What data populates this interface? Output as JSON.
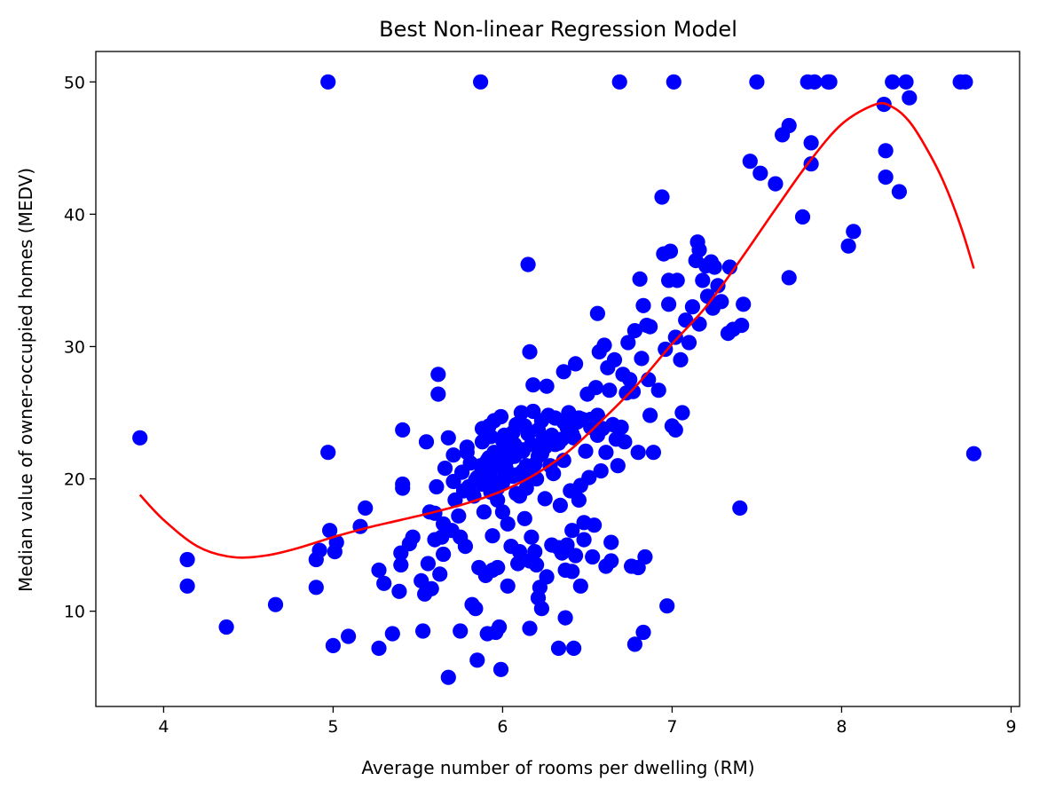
{
  "chart_data": {
    "type": "scatter",
    "title": "Best Non-linear Regression Model",
    "xlabel": "Average number of rooms per dwelling (RM)",
    "ylabel": "Median value of owner-occupied homes (MEDV)",
    "xlim": [
      3.6,
      9.05
    ],
    "ylim": [
      2.8,
      52.3
    ],
    "xticks": [
      4,
      5,
      6,
      7,
      8,
      9
    ],
    "yticks": [
      10,
      20,
      30,
      40,
      50
    ],
    "grid": false,
    "legend": "none",
    "colors": {
      "points": "#0000ff",
      "fit": "#ff0000"
    },
    "points": [
      [
        3.86,
        23.1
      ],
      [
        4.14,
        13.9
      ],
      [
        4.14,
        11.9
      ],
      [
        4.37,
        8.8
      ],
      [
        4.66,
        10.5
      ],
      [
        4.9,
        11.8
      ],
      [
        4.9,
        13.9
      ],
      [
        4.92,
        14.6
      ],
      [
        4.97,
        22.0
      ],
      [
        4.97,
        50.0
      ],
      [
        4.98,
        16.1
      ],
      [
        5.0,
        7.4
      ],
      [
        5.01,
        14.5
      ],
      [
        5.02,
        15.2
      ],
      [
        5.09,
        8.1
      ],
      [
        5.16,
        16.4
      ],
      [
        5.19,
        17.8
      ],
      [
        5.27,
        13.1
      ],
      [
        5.27,
        7.2
      ],
      [
        5.3,
        12.1
      ],
      [
        5.35,
        8.3
      ],
      [
        5.39,
        11.5
      ],
      [
        5.4,
        13.5
      ],
      [
        5.4,
        14.4
      ],
      [
        5.41,
        19.6
      ],
      [
        5.41,
        19.3
      ],
      [
        5.41,
        23.7
      ],
      [
        5.45,
        15.1
      ],
      [
        5.47,
        15.6
      ],
      [
        5.52,
        12.3
      ],
      [
        5.53,
        8.5
      ],
      [
        5.54,
        11.3
      ],
      [
        5.55,
        22.8
      ],
      [
        5.56,
        13.6
      ],
      [
        5.57,
        17.5
      ],
      [
        5.58,
        11.7
      ],
      [
        5.6,
        17.4
      ],
      [
        5.6,
        15.4
      ],
      [
        5.61,
        19.4
      ],
      [
        5.62,
        26.4
      ],
      [
        5.62,
        27.9
      ],
      [
        5.63,
        12.8
      ],
      [
        5.64,
        15.6
      ],
      [
        5.65,
        16.6
      ],
      [
        5.65,
        14.3
      ],
      [
        5.66,
        20.8
      ],
      [
        5.68,
        23.1
      ],
      [
        5.68,
        5.0
      ],
      [
        5.7,
        16.1
      ],
      [
        5.71,
        19.8
      ],
      [
        5.71,
        21.8
      ],
      [
        5.72,
        18.4
      ],
      [
        5.74,
        17.2
      ],
      [
        5.75,
        8.5
      ],
      [
        5.75,
        15.6
      ],
      [
        5.76,
        20.5
      ],
      [
        5.77,
        19.1
      ],
      [
        5.78,
        14.9
      ],
      [
        5.79,
        22.0
      ],
      [
        5.79,
        22.4
      ],
      [
        5.8,
        19.4
      ],
      [
        5.81,
        21.2
      ],
      [
        5.82,
        10.5
      ],
      [
        5.83,
        18.7
      ],
      [
        5.84,
        10.2
      ],
      [
        5.85,
        20.1
      ],
      [
        5.85,
        6.3
      ],
      [
        5.86,
        13.3
      ],
      [
        5.87,
        50.0
      ],
      [
        5.87,
        21.0
      ],
      [
        5.88,
        22.8
      ],
      [
        5.88,
        23.8
      ],
      [
        5.89,
        17.5
      ],
      [
        5.9,
        12.7
      ],
      [
        5.9,
        20.4
      ],
      [
        5.91,
        8.3
      ],
      [
        5.92,
        24.0
      ],
      [
        5.92,
        21.6
      ],
      [
        5.93,
        23.2
      ],
      [
        5.93,
        19.0
      ],
      [
        5.94,
        13.1
      ],
      [
        5.94,
        15.7
      ],
      [
        5.95,
        24.4
      ],
      [
        5.95,
        22.0
      ],
      [
        5.96,
        8.4
      ],
      [
        5.97,
        13.3
      ],
      [
        5.97,
        18.4
      ],
      [
        5.98,
        8.8
      ],
      [
        5.98,
        21.2
      ],
      [
        5.99,
        24.7
      ],
      [
        5.99,
        5.6
      ],
      [
        6.0,
        17.5
      ],
      [
        6.0,
        19.7
      ],
      [
        6.01,
        23.3
      ],
      [
        6.02,
        20.8
      ],
      [
        6.03,
        16.6
      ],
      [
        6.03,
        11.9
      ],
      [
        6.04,
        22.5
      ],
      [
        6.05,
        14.9
      ],
      [
        6.06,
        20.2
      ],
      [
        6.07,
        21.7
      ],
      [
        6.08,
        24.1
      ],
      [
        6.08,
        18.9
      ],
      [
        6.09,
        13.6
      ],
      [
        6.1,
        14.5
      ],
      [
        6.11,
        25.0
      ],
      [
        6.12,
        22.2
      ],
      [
        6.12,
        20.6
      ],
      [
        6.13,
        17.0
      ],
      [
        6.14,
        19.3
      ],
      [
        6.15,
        36.2
      ],
      [
        6.15,
        23.4
      ],
      [
        6.16,
        13.8
      ],
      [
        6.16,
        8.7
      ],
      [
        6.16,
        29.6
      ],
      [
        6.17,
        15.6
      ],
      [
        6.17,
        22.6
      ],
      [
        6.18,
        27.1
      ],
      [
        6.18,
        25.1
      ],
      [
        6.19,
        14.5
      ],
      [
        6.2,
        13.5
      ],
      [
        6.2,
        20.0
      ],
      [
        6.21,
        11.0
      ],
      [
        6.21,
        21.7
      ],
      [
        6.22,
        11.8
      ],
      [
        6.23,
        10.2
      ],
      [
        6.23,
        24.4
      ],
      [
        6.24,
        23.0
      ],
      [
        6.25,
        18.5
      ],
      [
        6.26,
        12.6
      ],
      [
        6.26,
        27.0
      ],
      [
        6.27,
        22.9
      ],
      [
        6.28,
        21.0
      ],
      [
        6.29,
        15.0
      ],
      [
        6.3,
        20.4
      ],
      [
        6.31,
        22.6
      ],
      [
        6.31,
        24.6
      ],
      [
        6.33,
        14.8
      ],
      [
        6.33,
        7.2
      ],
      [
        6.34,
        18.0
      ],
      [
        6.35,
        23.0
      ],
      [
        6.35,
        14.4
      ],
      [
        6.36,
        28.1
      ],
      [
        6.36,
        21.4
      ],
      [
        6.37,
        13.1
      ],
      [
        6.37,
        9.5
      ],
      [
        6.38,
        24.0
      ],
      [
        6.38,
        15.0
      ],
      [
        6.39,
        25.0
      ],
      [
        6.4,
        19.1
      ],
      [
        6.41,
        13.0
      ],
      [
        6.41,
        16.1
      ],
      [
        6.42,
        23.1
      ],
      [
        6.42,
        7.2
      ],
      [
        6.43,
        28.7
      ],
      [
        6.43,
        14.2
      ],
      [
        6.44,
        24.3
      ],
      [
        6.45,
        18.4
      ],
      [
        6.46,
        19.5
      ],
      [
        6.46,
        11.9
      ],
      [
        6.47,
        24.5
      ],
      [
        6.48,
        15.4
      ],
      [
        6.48,
        16.7
      ],
      [
        6.49,
        22.1
      ],
      [
        6.5,
        26.4
      ],
      [
        6.51,
        20.1
      ],
      [
        6.52,
        23.9
      ],
      [
        6.53,
        14.1
      ],
      [
        6.54,
        16.5
      ],
      [
        6.55,
        26.9
      ],
      [
        6.56,
        32.5
      ],
      [
        6.56,
        24.8
      ],
      [
        6.57,
        29.6
      ],
      [
        6.58,
        20.6
      ],
      [
        6.59,
        23.8
      ],
      [
        6.6,
        30.1
      ],
      [
        6.61,
        22.0
      ],
      [
        6.61,
        13.4
      ],
      [
        6.62,
        28.4
      ],
      [
        6.63,
        26.7
      ],
      [
        6.64,
        13.8
      ],
      [
        6.64,
        15.2
      ],
      [
        6.65,
        24.1
      ],
      [
        6.66,
        29.0
      ],
      [
        6.67,
        23.0
      ],
      [
        6.68,
        21.0
      ],
      [
        6.69,
        50.0
      ],
      [
        6.7,
        23.9
      ],
      [
        6.71,
        27.9
      ],
      [
        6.72,
        22.8
      ],
      [
        6.73,
        26.5
      ],
      [
        6.74,
        30.3
      ],
      [
        6.75,
        27.5
      ],
      [
        6.76,
        13.4
      ],
      [
        6.77,
        26.6
      ],
      [
        6.78,
        31.2
      ],
      [
        6.78,
        7.5
      ],
      [
        6.8,
        13.3
      ],
      [
        6.8,
        22.0
      ],
      [
        6.81,
        35.1
      ],
      [
        6.82,
        29.1
      ],
      [
        6.83,
        33.1
      ],
      [
        6.83,
        8.4
      ],
      [
        6.84,
        14.1
      ],
      [
        6.85,
        31.6
      ],
      [
        6.86,
        27.5
      ],
      [
        6.87,
        24.8
      ],
      [
        6.87,
        31.5
      ],
      [
        6.89,
        22.0
      ],
      [
        6.92,
        26.7
      ],
      [
        6.94,
        41.3
      ],
      [
        6.95,
        37.0
      ],
      [
        6.96,
        29.8
      ],
      [
        6.97,
        10.4
      ],
      [
        6.98,
        35.0
      ],
      [
        6.98,
        33.2
      ],
      [
        6.99,
        37.2
      ],
      [
        7.0,
        24.0
      ],
      [
        7.01,
        50.0
      ],
      [
        7.02,
        23.7
      ],
      [
        7.02,
        30.7
      ],
      [
        7.03,
        35.0
      ],
      [
        7.05,
        29.0
      ],
      [
        7.06,
        25.0
      ],
      [
        7.08,
        32.0
      ],
      [
        7.1,
        30.3
      ],
      [
        7.12,
        33.0
      ],
      [
        7.14,
        36.5
      ],
      [
        7.15,
        37.9
      ],
      [
        7.16,
        37.3
      ],
      [
        7.16,
        31.7
      ],
      [
        7.18,
        35.0
      ],
      [
        7.2,
        36.1
      ],
      [
        7.21,
        33.8
      ],
      [
        7.23,
        36.4
      ],
      [
        7.24,
        32.9
      ],
      [
        7.25,
        36.0
      ],
      [
        7.27,
        34.6
      ],
      [
        7.29,
        33.4
      ],
      [
        7.33,
        31.0
      ],
      [
        7.34,
        36.0
      ],
      [
        7.36,
        31.3
      ],
      [
        7.4,
        17.8
      ],
      [
        7.41,
        31.6
      ],
      [
        7.42,
        33.2
      ],
      [
        7.46,
        44.0
      ],
      [
        7.5,
        50.0
      ],
      [
        7.52,
        43.1
      ],
      [
        7.61,
        42.3
      ],
      [
        7.65,
        46.0
      ],
      [
        7.69,
        35.2
      ],
      [
        7.69,
        46.7
      ],
      [
        7.77,
        39.8
      ],
      [
        7.8,
        50.0
      ],
      [
        7.82,
        45.4
      ],
      [
        7.82,
        43.8
      ],
      [
        7.84,
        50.0
      ],
      [
        7.92,
        50.0
      ],
      [
        7.93,
        50.0
      ],
      [
        8.04,
        37.6
      ],
      [
        8.07,
        38.7
      ],
      [
        8.25,
        48.3
      ],
      [
        8.26,
        42.8
      ],
      [
        8.26,
        44.8
      ],
      [
        8.3,
        50.0
      ],
      [
        8.34,
        41.7
      ],
      [
        8.38,
        50.0
      ],
      [
        8.4,
        48.8
      ],
      [
        8.7,
        50.0
      ],
      [
        8.73,
        50.0
      ],
      [
        8.78,
        21.9
      ],
      [
        6.03,
        21.5
      ],
      [
        6.12,
        22.1
      ],
      [
        6.21,
        23.7
      ],
      [
        6.08,
        20.3
      ],
      [
        5.96,
        20.9
      ],
      [
        6.15,
        19.9
      ],
      [
        6.25,
        22.4
      ],
      [
        6.06,
        23.5
      ],
      [
        5.99,
        21.9
      ],
      [
        6.19,
        21.1
      ],
      [
        5.93,
        20.0
      ],
      [
        6.29,
        23.3
      ],
      [
        6.01,
        20.1
      ],
      [
        6.13,
        24.0
      ],
      [
        5.88,
        19.6
      ],
      [
        6.23,
        21.9
      ],
      [
        6.1,
        18.7
      ],
      [
        6.38,
        23.9
      ],
      [
        6.45,
        24.6
      ],
      [
        6.33,
        22.7
      ],
      [
        6.07,
        22.6
      ],
      [
        5.97,
        19.3
      ],
      [
        6.17,
        20.8
      ],
      [
        6.41,
        23.4
      ],
      [
        6.52,
        24.5
      ],
      [
        5.91,
        21.4
      ],
      [
        6.27,
        24.8
      ],
      [
        6.0,
        22.9
      ],
      [
        6.56,
        23.3
      ],
      [
        5.84,
        19.9
      ],
      [
        6.14,
        21.0
      ],
      [
        6.36,
        24.3
      ]
    ],
    "fit_curve": {
      "x": [
        3.86,
        4.0,
        4.2,
        4.4,
        4.6,
        4.8,
        5.0,
        5.2,
        5.4,
        5.6,
        5.8,
        6.0,
        6.2,
        6.4,
        6.6,
        6.8,
        7.0,
        7.2,
        7.4,
        7.6,
        7.8,
        8.0,
        8.2,
        8.3,
        8.4,
        8.5,
        8.6,
        8.7,
        8.78
      ],
      "y": [
        18.8,
        16.9,
        14.9,
        14.1,
        14.2,
        14.8,
        15.6,
        16.3,
        16.9,
        17.5,
        18.2,
        19.1,
        20.4,
        22.2,
        24.6,
        27.2,
        30.2,
        33.0,
        36.5,
        40.2,
        43.8,
        46.8,
        48.3,
        48.1,
        47.0,
        45.0,
        42.5,
        39.2,
        35.9
      ]
    }
  }
}
